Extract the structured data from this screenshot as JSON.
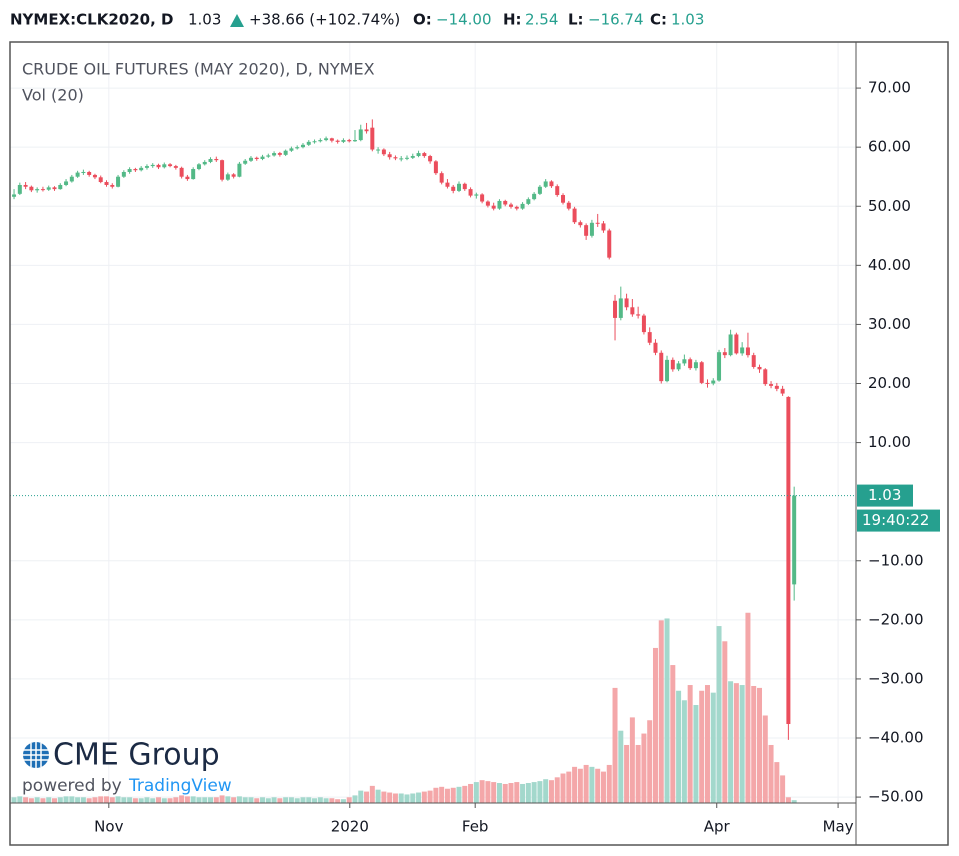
{
  "header": {
    "symbol": "NYMEX:CLK2020, D",
    "last": "1.03",
    "change": "+38.66 (+102.74%)",
    "open_label": "O:",
    "open": "−14.00",
    "high_label": "H:",
    "high": "2.54",
    "low_label": "L:",
    "low": "−16.74",
    "close_label": "C:",
    "close": "1.03"
  },
  "logo": {
    "brand": "CME Group",
    "powered": "powered by",
    "provider": "TradingView"
  },
  "chart_data": {
    "type": "candlestick",
    "title": "CRUDE OIL FUTURES (MAY 2020), D, NYMEX",
    "volume_title": "Vol (20)",
    "up_color": "#53b987",
    "down_color": "#eb4d5c",
    "up_volume_color": "#a3d8cc",
    "down_volume_color": "#f4a7a9",
    "grid": true,
    "candles": [
      [
        51.6,
        52.9,
        51.2,
        52.0,
        6
      ],
      [
        52.1,
        54.0,
        51.9,
        53.6,
        7
      ],
      [
        53.6,
        54.1,
        52.9,
        53.3,
        6
      ],
      [
        53.3,
        53.5,
        52.4,
        52.7,
        5
      ],
      [
        52.7,
        53.2,
        52.3,
        52.9,
        6
      ],
      [
        52.9,
        53.3,
        52.5,
        52.8,
        5
      ],
      [
        52.8,
        53.5,
        52.6,
        53.2,
        6
      ],
      [
        53.2,
        53.4,
        52.6,
        52.9,
        5
      ],
      [
        52.9,
        53.9,
        52.8,
        53.6,
        6
      ],
      [
        53.6,
        54.6,
        53.4,
        54.2,
        7
      ],
      [
        54.2,
        55.3,
        54.0,
        55.0,
        7
      ],
      [
        55.0,
        56.0,
        54.8,
        55.7,
        6
      ],
      [
        55.7,
        56.2,
        55.3,
        55.8,
        6
      ],
      [
        55.8,
        56.0,
        55.0,
        55.3,
        5
      ],
      [
        55.3,
        55.5,
        54.6,
        54.9,
        6
      ],
      [
        54.9,
        55.2,
        53.9,
        54.1,
        7
      ],
      [
        54.1,
        54.4,
        53.3,
        53.6,
        7
      ],
      [
        53.6,
        53.9,
        53.0,
        53.3,
        6
      ],
      [
        53.3,
        55.3,
        53.2,
        55.0,
        7
      ],
      [
        55.0,
        56.1,
        54.8,
        55.8,
        6
      ],
      [
        55.8,
        56.6,
        55.5,
        56.3,
        6
      ],
      [
        56.3,
        56.5,
        55.8,
        56.1,
        5
      ],
      [
        56.1,
        56.8,
        55.9,
        56.5,
        5
      ],
      [
        56.5,
        57.1,
        56.2,
        56.8,
        6
      ],
      [
        56.8,
        57.3,
        56.5,
        57.0,
        5
      ],
      [
        57.0,
        57.2,
        56.3,
        56.6,
        6
      ],
      [
        56.6,
        57.4,
        56.4,
        57.1,
        5
      ],
      [
        57.1,
        57.3,
        56.6,
        56.8,
        5
      ],
      [
        56.8,
        57.0,
        56.2,
        56.5,
        6
      ],
      [
        56.5,
        56.7,
        54.7,
        55.0,
        8
      ],
      [
        55.0,
        55.3,
        54.3,
        54.6,
        7
      ],
      [
        54.6,
        56.6,
        54.5,
        56.3,
        7
      ],
      [
        56.3,
        57.3,
        56.1,
        57.1,
        6
      ],
      [
        57.1,
        57.8,
        56.9,
        57.5,
        6
      ],
      [
        57.5,
        58.3,
        57.3,
        58.0,
        6
      ],
      [
        58.0,
        58.4,
        57.5,
        57.8,
        6
      ],
      [
        57.8,
        57.9,
        54.2,
        54.5,
        8
      ],
      [
        54.5,
        55.7,
        54.3,
        55.4,
        7
      ],
      [
        55.4,
        55.6,
        54.7,
        55.0,
        6
      ],
      [
        55.0,
        57.5,
        54.9,
        57.2,
        7
      ],
      [
        57.2,
        58.0,
        57.0,
        57.7,
        6
      ],
      [
        57.7,
        58.5,
        57.5,
        58.2,
        6
      ],
      [
        58.2,
        58.4,
        57.7,
        58.0,
        5
      ],
      [
        58.0,
        58.7,
        57.8,
        58.4,
        6
      ],
      [
        58.4,
        58.9,
        58.2,
        58.6,
        5
      ],
      [
        58.6,
        59.3,
        58.4,
        59.0,
        6
      ],
      [
        59.0,
        59.2,
        58.4,
        58.7,
        5
      ],
      [
        58.7,
        59.6,
        58.5,
        59.4,
        6
      ],
      [
        59.4,
        60.1,
        59.2,
        59.8,
        6
      ],
      [
        59.8,
        60.3,
        59.6,
        60.0,
        5
      ],
      [
        60.0,
        60.7,
        59.8,
        60.4,
        6
      ],
      [
        60.4,
        61.2,
        60.2,
        60.9,
        6
      ],
      [
        60.9,
        61.3,
        60.6,
        61.0,
        5
      ],
      [
        61.0,
        61.5,
        60.8,
        61.2,
        6
      ],
      [
        61.2,
        61.8,
        61.0,
        61.5,
        5
      ],
      [
        61.5,
        61.6,
        60.8,
        61.1,
        5
      ],
      [
        61.1,
        61.3,
        60.6,
        60.9,
        4
      ],
      [
        60.9,
        61.5,
        60.7,
        61.2,
        4
      ],
      [
        61.2,
        61.4,
        60.8,
        61.0,
        6
      ],
      [
        61.0,
        62.9,
        60.9,
        61.2,
        8
      ],
      [
        61.2,
        63.8,
        61.0,
        63.0,
        13
      ],
      [
        63.0,
        64.1,
        62.3,
        62.7,
        12
      ],
      [
        63.3,
        64.7,
        59.3,
        59.6,
        18
      ],
      [
        59.6,
        60.0,
        58.9,
        59.6,
        14
      ],
      [
        59.6,
        59.8,
        58.5,
        58.8,
        12
      ],
      [
        58.8,
        59.2,
        57.9,
        58.3,
        11
      ],
      [
        58.3,
        58.6,
        57.8,
        58.1,
        10
      ],
      [
        58.1,
        58.5,
        57.6,
        58.1,
        10
      ],
      [
        58.1,
        58.6,
        57.8,
        58.2,
        9
      ],
      [
        58.2,
        58.9,
        58.0,
        58.5,
        10
      ],
      [
        58.5,
        59.4,
        58.3,
        59.0,
        11
      ],
      [
        59.0,
        59.2,
        58.2,
        58.5,
        12
      ],
      [
        58.5,
        58.7,
        57.2,
        57.6,
        13
      ],
      [
        57.6,
        57.8,
        55.3,
        55.6,
        16
      ],
      [
        55.6,
        55.9,
        53.7,
        54.0,
        17
      ],
      [
        54.0,
        54.6,
        53.0,
        53.3,
        15
      ],
      [
        53.3,
        53.6,
        52.2,
        52.6,
        16
      ],
      [
        52.6,
        54.2,
        52.4,
        53.8,
        17
      ],
      [
        53.8,
        54.0,
        52.6,
        52.9,
        18
      ],
      [
        52.9,
        53.2,
        51.5,
        51.8,
        20
      ],
      [
        51.8,
        52.3,
        51.3,
        52.0,
        22
      ],
      [
        52.0,
        52.2,
        50.5,
        50.8,
        24
      ],
      [
        50.8,
        51.0,
        49.8,
        50.1,
        23
      ],
      [
        50.1,
        50.6,
        49.3,
        49.6,
        22
      ],
      [
        49.6,
        51.2,
        49.4,
        50.9,
        21
      ],
      [
        50.9,
        51.1,
        50.0,
        50.3,
        20
      ],
      [
        50.3,
        50.6,
        49.6,
        49.9,
        21
      ],
      [
        49.9,
        50.1,
        49.3,
        49.6,
        22
      ],
      [
        49.6,
        50.7,
        49.4,
        50.4,
        20
      ],
      [
        50.4,
        51.5,
        50.2,
        51.2,
        21
      ],
      [
        51.2,
        52.4,
        51.0,
        52.1,
        22
      ],
      [
        52.1,
        53.6,
        51.9,
        53.3,
        23
      ],
      [
        53.3,
        54.6,
        53.1,
        54.2,
        25
      ],
      [
        54.2,
        54.4,
        53.1,
        53.4,
        24
      ],
      [
        53.4,
        53.7,
        51.6,
        51.9,
        27
      ],
      [
        51.9,
        52.2,
        50.3,
        50.6,
        31
      ],
      [
        50.6,
        50.9,
        49.3,
        49.6,
        33
      ],
      [
        49.6,
        49.9,
        47.0,
        47.3,
        38
      ],
      [
        47.3,
        47.6,
        46.4,
        46.8,
        36
      ],
      [
        46.8,
        47.1,
        44.3,
        45.0,
        40
      ],
      [
        45.0,
        47.7,
        44.7,
        47.2,
        38
      ],
      [
        47.2,
        48.7,
        46.5,
        47.1,
        36
      ],
      [
        47.1,
        47.5,
        45.5,
        45.9,
        33
      ],
      [
        45.9,
        46.2,
        41.0,
        41.3,
        40
      ],
      [
        34.0,
        35.0,
        27.3,
        31.1,
        121
      ],
      [
        31.1,
        36.4,
        30.7,
        34.4,
        76
      ],
      [
        34.4,
        35.2,
        32.4,
        32.9,
        61
      ],
      [
        32.9,
        34.3,
        31.3,
        31.7,
        90
      ],
      [
        31.7,
        33.0,
        31.0,
        31.5,
        61
      ],
      [
        31.5,
        31.8,
        28.3,
        28.7,
        73
      ],
      [
        28.7,
        29.5,
        26.5,
        26.9,
        87
      ],
      [
        26.9,
        27.5,
        24.8,
        25.2,
        163
      ],
      [
        25.2,
        25.6,
        20.0,
        20.4,
        192
      ],
      [
        20.4,
        24.7,
        20.2,
        24.0,
        194
      ],
      [
        24.0,
        24.4,
        22.0,
        22.4,
        145
      ],
      [
        22.4,
        23.8,
        22.1,
        23.4,
        118
      ],
      [
        23.4,
        24.9,
        23.0,
        24.1,
        108
      ],
      [
        24.1,
        24.4,
        22.3,
        22.6,
        124
      ],
      [
        22.6,
        24.0,
        22.2,
        23.6,
        103
      ],
      [
        23.6,
        23.8,
        19.9,
        20.1,
        118
      ],
      [
        20.1,
        20.7,
        19.3,
        20.0,
        124
      ],
      [
        20.0,
        20.9,
        19.7,
        20.5,
        116
      ],
      [
        20.5,
        25.7,
        20.3,
        25.3,
        186
      ],
      [
        25.3,
        26.0,
        24.3,
        24.8,
        170
      ],
      [
        24.8,
        29.1,
        24.6,
        28.3,
        128
      ],
      [
        28.3,
        28.6,
        24.9,
        25.1,
        126
      ],
      [
        25.1,
        27.0,
        24.7,
        26.1,
        124
      ],
      [
        26.1,
        28.6,
        24.4,
        24.8,
        200
      ],
      [
        24.8,
        25.2,
        22.5,
        22.8,
        123
      ],
      [
        22.8,
        23.2,
        21.8,
        22.4,
        121
      ],
      [
        22.4,
        22.6,
        19.6,
        19.9,
        92
      ],
      [
        19.9,
        20.4,
        19.2,
        19.6,
        61
      ],
      [
        19.6,
        20.1,
        18.7,
        19.1,
        43
      ],
      [
        19.1,
        19.6,
        17.9,
        18.3,
        29
      ],
      [
        17.73,
        17.85,
        -40.32,
        -37.63,
        6
      ],
      [
        -14.0,
        2.54,
        -16.74,
        1.03,
        3
      ]
    ],
    "xlim": [
      -0.7,
      145.7
    ],
    "xticks": [
      {
        "value": 16.4,
        "label": "Nov"
      },
      {
        "value": 58.1,
        "label": "2020"
      },
      {
        "value": 79.8,
        "label": "Feb"
      },
      {
        "value": 121.6,
        "label": "Apr"
      },
      {
        "value": 142.6,
        "label": "May"
      }
    ],
    "ylim": [
      -51,
      77.8
    ],
    "yticks": [
      {
        "value": 70,
        "label": "70.00"
      },
      {
        "value": 60,
        "label": "60.00"
      },
      {
        "value": 50,
        "label": "50.00"
      },
      {
        "value": 40,
        "label": "40.00"
      },
      {
        "value": 30,
        "label": "30.00"
      },
      {
        "value": 20,
        "label": "20.00"
      },
      {
        "value": 10,
        "label": "10.00"
      },
      {
        "value": -10,
        "label": "−10.00"
      },
      {
        "value": -20,
        "label": "−20.00"
      },
      {
        "value": -30,
        "label": "−30.00"
      },
      {
        "value": -40,
        "label": "−40.00"
      },
      {
        "value": -50,
        "label": "−50.00"
      }
    ],
    "volume_lim": [
      0,
      800
    ],
    "last_price": {
      "value": 1.03,
      "label": "1.03"
    },
    "last_price_color": "#26a08f",
    "countdown": "19:40:22"
  }
}
